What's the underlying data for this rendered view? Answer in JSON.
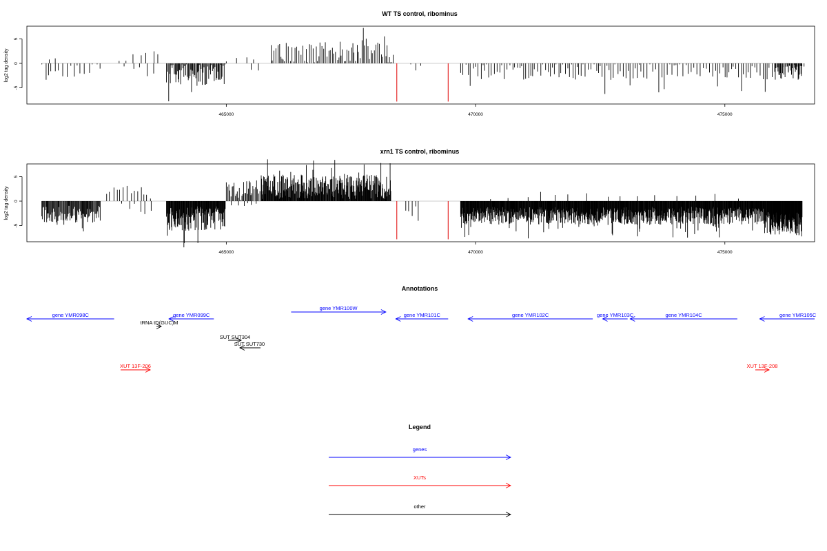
{
  "chart_data": [
    {
      "type": "bar",
      "title": "WT TS control, ribominus",
      "xlabel": "",
      "ylabel": "log2 tag density",
      "xlim": [
        461000,
        476800
      ],
      "ylim": [
        -8.3,
        7.6
      ],
      "x_ticks": [
        465000,
        470000,
        475000
      ],
      "y_ticks": [
        -5,
        0,
        5
      ],
      "grid": false,
      "baseline_color": "#bbbbbb",
      "bar_color": "#000000",
      "marker_color": "#e00000",
      "markers": [
        {
          "x": 468420,
          "y": -7.8
        },
        {
          "x": 469450,
          "y": -7.8
        }
      ],
      "segments": [
        {
          "x0": 461300,
          "x1": 462100,
          "sign": -1,
          "step": 65,
          "amp": 1.3,
          "var": 1.6
        },
        {
          "x0": 462150,
          "x1": 462500,
          "sign": -1,
          "step": 80,
          "amp": 0.9,
          "var": 1.0
        },
        {
          "x0": 461450,
          "x1": 461650,
          "sign": 1,
          "step": 140,
          "amp": 1.0,
          "var": 0.6
        },
        {
          "x0": 462850,
          "x1": 463650,
          "sign": 1,
          "step": 120,
          "amp": 1.3,
          "var": 1.3
        },
        {
          "x0": 462950,
          "x1": 463550,
          "sign": -1,
          "step": 140,
          "amp": 1.4,
          "var": 1.2
        },
        {
          "x0": 463800,
          "x1": 464980,
          "sign": -1,
          "step": 18,
          "amp": 2.0,
          "var": 2.2
        },
        {
          "x0": 465000,
          "x1": 465700,
          "sign": 1,
          "step": 220,
          "amp": 0.8,
          "var": 0.6
        },
        {
          "x0": 465500,
          "x1": 465650,
          "sign": -1,
          "step": 150,
          "amp": 1.2,
          "var": 0.6
        },
        {
          "x0": 465900,
          "x1": 468350,
          "sign": 1,
          "step": 32,
          "amp": 1.9,
          "var": 2.2
        },
        {
          "x0": 468700,
          "x1": 468900,
          "sign": -1,
          "step": 80,
          "amp": 1.0,
          "var": 1.0
        },
        {
          "x0": 469700,
          "x1": 476600,
          "sign": -1,
          "step": 50,
          "amp": 1.5,
          "var": 1.7
        },
        {
          "x0": 476000,
          "x1": 476550,
          "sign": -1,
          "step": 20,
          "amp": 1.7,
          "var": 1.4
        }
      ]
    },
    {
      "type": "bar",
      "title": "xrn1 TS control, ribominus",
      "xlabel": "",
      "ylabel": "log2 tag density",
      "xlim": [
        461000,
        476800
      ],
      "ylim": [
        -8.3,
        7.6
      ],
      "x_ticks": [
        465000,
        470000,
        475000
      ],
      "y_ticks": [
        -5,
        0,
        5
      ],
      "grid": false,
      "baseline_color": "#bbbbbb",
      "bar_color": "#000000",
      "marker_color": "#e00000",
      "markers": [
        {
          "x": 468420,
          "y": -7.8
        },
        {
          "x": 469450,
          "y": -7.8
        }
      ],
      "segments": [
        {
          "x0": 461300,
          "x1": 462480,
          "sign": -1,
          "step": 14,
          "amp": 2.5,
          "var": 1.7
        },
        {
          "x0": 462600,
          "x1": 463500,
          "sign": 1,
          "step": 70,
          "amp": 1.5,
          "var": 1.4
        },
        {
          "x0": 462900,
          "x1": 463600,
          "sign": -1,
          "step": 120,
          "amp": 1.5,
          "var": 1.5
        },
        {
          "x0": 463800,
          "x1": 464980,
          "sign": -1,
          "step": 9,
          "amp": 3.3,
          "var": 2.5
        },
        {
          "x0": 465000,
          "x1": 465700,
          "sign": 1,
          "step": 22,
          "amp": 2.0,
          "var": 2.2
        },
        {
          "x0": 465100,
          "x1": 465600,
          "sign": -1,
          "step": 110,
          "amp": 0.6,
          "var": 0.4
        },
        {
          "x0": 465700,
          "x1": 468300,
          "sign": 1,
          "step": 10,
          "amp": 2.7,
          "var": 2.5
        },
        {
          "x0": 468600,
          "x1": 468900,
          "sign": -1,
          "step": 70,
          "amp": 1.2,
          "var": 1.3
        },
        {
          "x0": 469700,
          "x1": 475900,
          "sign": -1,
          "step": 8,
          "amp": 2.8,
          "var": 1.8
        },
        {
          "x0": 470300,
          "x1": 475400,
          "sign": 1,
          "step": 380,
          "amp": 0.9,
          "var": 0.6
        },
        {
          "x0": 475900,
          "x1": 476550,
          "sign": -1,
          "step": 6,
          "amp": 4.4,
          "var": 2.3
        }
      ]
    }
  ],
  "annotations": {
    "title": "Annotations",
    "xlim": [
      461000,
      476800
    ],
    "features": [
      {
        "label": "gene YMR098C",
        "x0": 461000,
        "x1": 462750,
        "strand": "-",
        "color": "#0000ff",
        "row": 0
      },
      {
        "label": "gene YMR099C",
        "x0": 463850,
        "x1": 464750,
        "strand": "-",
        "color": "#0000ff",
        "row": 0
      },
      {
        "label": "gene YMR100W",
        "x0": 466300,
        "x1": 468200,
        "strand": "+",
        "color": "#0000ff",
        "row": -1
      },
      {
        "label": "gene YMR101C",
        "x0": 468400,
        "x1": 469450,
        "strand": "-",
        "color": "#0000ff",
        "row": 0
      },
      {
        "label": "gene YMR102C",
        "x0": 469850,
        "x1": 472350,
        "strand": "-",
        "color": "#0000ff",
        "row": 0
      },
      {
        "label": "gene YMR103C",
        "x0": 472550,
        "x1": 473050,
        "strand": "-",
        "color": "#0000ff",
        "row": 0
      },
      {
        "label": "gene YMR104C",
        "x0": 473100,
        "x1": 475250,
        "strand": "-",
        "color": "#0000ff",
        "row": 0
      },
      {
        "label": "gene YMR105C",
        "x0": 475700,
        "x1": 476800,
        "strand": "-",
        "color": "#0000ff",
        "row": 0
      },
      {
        "label": "tRNA tD(GUC)M",
        "x0": 463300,
        "x1": 463400,
        "strand": "+",
        "color": "#000000",
        "row": 1
      },
      {
        "label": "SUT SUT304",
        "x0": 464900,
        "x1": 465100,
        "strand": "+",
        "color": "#000000",
        "row": 2
      },
      {
        "label": "SUT SUT730",
        "x0": 465200,
        "x1": 465600,
        "strand": "-",
        "color": "#000000",
        "row": 3
      },
      {
        "label": "XUT 13F-206",
        "x0": 462950,
        "x1": 463550,
        "strand": "+",
        "color": "#ff0000",
        "row": 5
      },
      {
        "label": "XUT 13F-208",
        "x0": 475700,
        "x1": 476050,
        "strand": "+",
        "color": "#ff0000",
        "row": 5
      }
    ]
  },
  "legend": {
    "title": "Legend",
    "items": [
      {
        "label": "genes",
        "color": "#0000ff"
      },
      {
        "label": "XUTs",
        "color": "#ff0000"
      },
      {
        "label": "other",
        "color": "#000000"
      }
    ]
  }
}
